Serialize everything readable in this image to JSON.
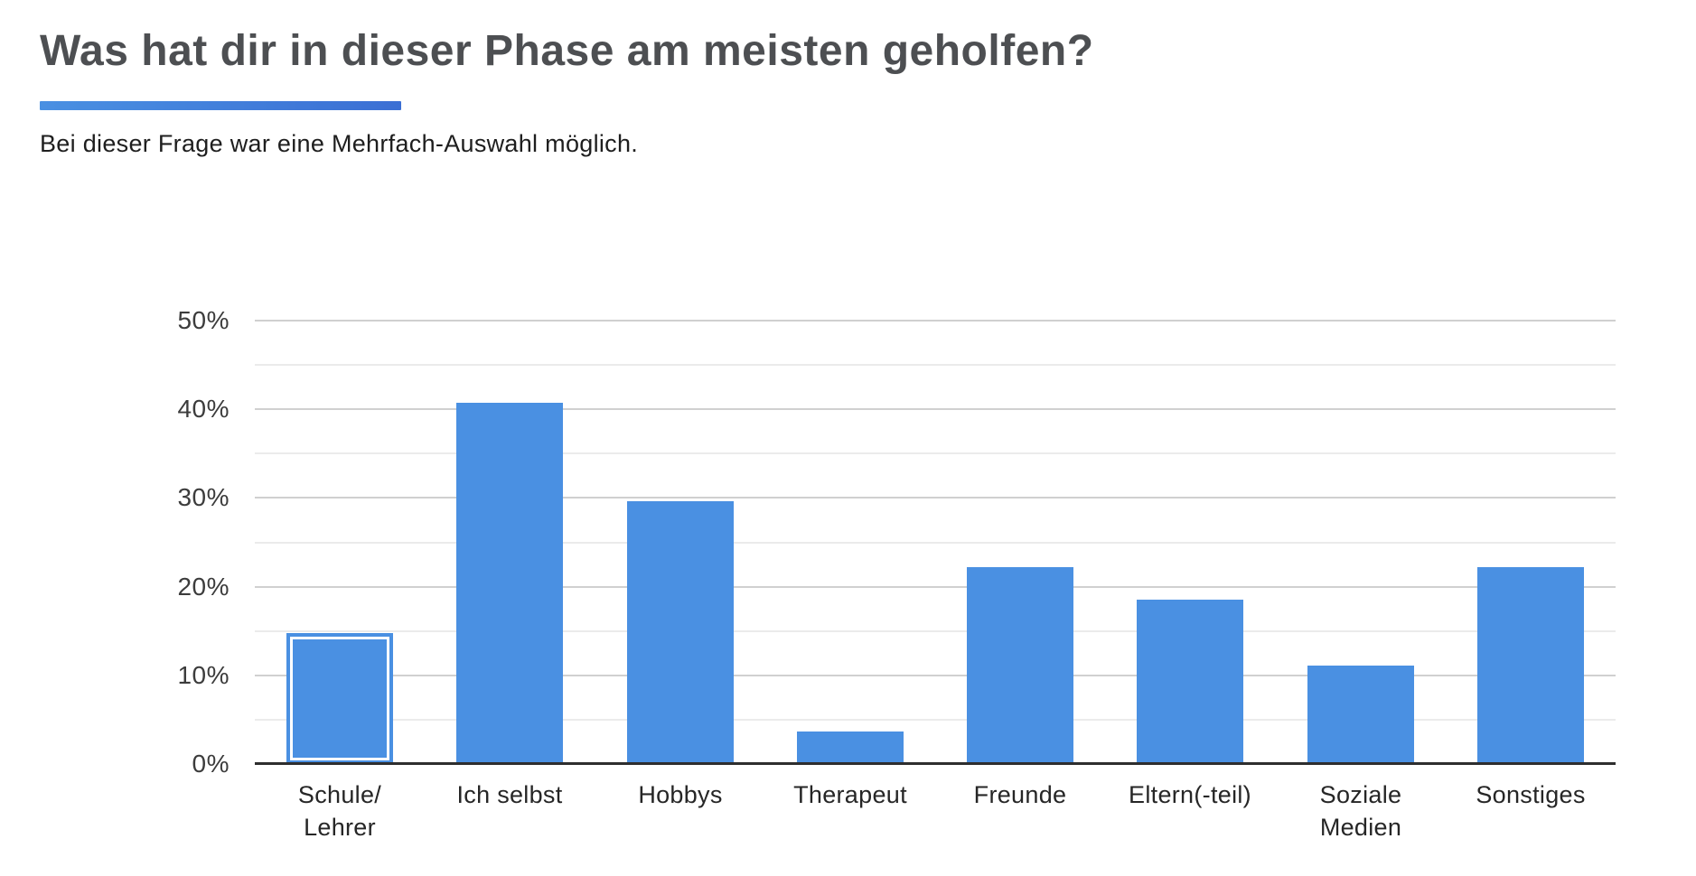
{
  "header": {
    "title": "Was hat dir in dieser Phase am meisten geholfen?",
    "subtitle": "Bei dieser Frage war eine Mehrfach-Auswahl möglich."
  },
  "colors": {
    "bar_blue": "#4a90e2",
    "underline_gradient_start": "#4a90e2",
    "underline_gradient_end": "#3b6fd4",
    "title_gray": "#4d4f52",
    "axis_dark": "#2e2e2e",
    "gridline_major": "#d0d0d0",
    "gridline_minor": "#ebebeb"
  },
  "chart_data": {
    "type": "bar",
    "title": "Was hat dir in dieser Phase am meisten geholfen?",
    "xlabel": "",
    "ylabel": "",
    "ylim": [
      0,
      50
    ],
    "y_unit": "%",
    "y_ticks_major": [
      0,
      10,
      20,
      30,
      40,
      50
    ],
    "y_ticks_minor": [
      5,
      15,
      25,
      35,
      45
    ],
    "grid": true,
    "legend": false,
    "categories": [
      "Schule/Lehrer",
      "Ich selbst",
      "Hobbys",
      "Therapeut",
      "Freunde",
      "Eltern(-teil)",
      "Soziale Medien",
      "Sonstiges"
    ],
    "values": [
      14.8,
      40.7,
      29.6,
      3.7,
      22.2,
      18.5,
      11.1,
      22.2
    ],
    "highlighted_category": "Schule/Lehrer",
    "bars": [
      {
        "label_lines": [
          "Schule/",
          "Lehrer"
        ],
        "value": 14.8,
        "highlighted": true
      },
      {
        "label_lines": [
          "Ich selbst"
        ],
        "value": 40.7,
        "highlighted": false
      },
      {
        "label_lines": [
          "Hobbys"
        ],
        "value": 29.6,
        "highlighted": false
      },
      {
        "label_lines": [
          "Therapeut"
        ],
        "value": 3.7,
        "highlighted": false
      },
      {
        "label_lines": [
          "Freunde"
        ],
        "value": 22.2,
        "highlighted": false
      },
      {
        "label_lines": [
          "Eltern(-teil)"
        ],
        "value": 18.5,
        "highlighted": false
      },
      {
        "label_lines": [
          "Soziale",
          "Medien"
        ],
        "value": 11.1,
        "highlighted": false
      },
      {
        "label_lines": [
          "Sonstiges"
        ],
        "value": 22.2,
        "highlighted": false
      }
    ],
    "y_tick_label_suffix": "%"
  }
}
